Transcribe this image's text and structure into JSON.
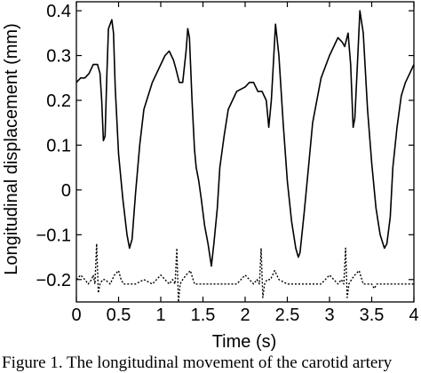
{
  "caption": "Figure 1. The longitudinal movement of the carotid artery",
  "chart_data": {
    "type": "line",
    "xlabel": "Time (s)",
    "ylabel": "Longitudinal displacement (mm)",
    "xlim": [
      0,
      4
    ],
    "ylim": [
      -0.25,
      0.42
    ],
    "grid": false,
    "x_ticks": [
      0,
      0.5,
      1,
      1.5,
      2,
      2.5,
      3,
      3.5,
      4
    ],
    "x_tick_labels": [
      "0",
      "0.5",
      "1",
      "1.5",
      "2",
      "2.5",
      "3",
      "3.5",
      "4"
    ],
    "y_ticks": [
      -0.2,
      -0.1,
      0,
      0.1,
      0.2,
      0.3,
      0.4
    ],
    "y_tick_labels": [
      "−0.2",
      "−0.1",
      "0",
      "0.1",
      "0.2",
      "0.3",
      "0.4"
    ],
    "series": [
      {
        "style": "solid",
        "x": [
          0,
          0.05,
          0.1,
          0.15,
          0.2,
          0.25,
          0.28,
          0.3,
          0.32,
          0.34,
          0.36,
          0.38,
          0.42,
          0.44,
          0.46,
          0.5,
          0.55,
          0.6,
          0.63,
          0.66,
          0.7,
          0.75,
          0.8,
          0.9,
          1.0,
          1.05,
          1.1,
          1.15,
          1.18,
          1.22,
          1.26,
          1.3,
          1.32,
          1.34,
          1.37,
          1.4,
          1.42,
          1.45,
          1.48,
          1.52,
          1.56,
          1.6,
          1.63,
          1.67,
          1.7,
          1.75,
          1.8,
          1.9,
          2.0,
          2.05,
          2.1,
          2.15,
          2.2,
          2.25,
          2.28,
          2.31,
          2.34,
          2.36,
          2.4,
          2.45,
          2.5,
          2.55,
          2.6,
          2.63,
          2.65,
          2.7,
          2.75,
          2.8,
          2.9,
          3.0,
          3.1,
          3.15,
          3.18,
          3.22,
          3.25,
          3.28,
          3.3,
          3.33,
          3.36,
          3.4,
          3.45,
          3.5,
          3.55,
          3.6,
          3.65,
          3.68,
          3.72,
          3.75,
          3.8,
          3.85,
          3.9,
          3.95,
          4.0
        ],
        "y": [
          0.24,
          0.25,
          0.25,
          0.26,
          0.28,
          0.28,
          0.26,
          0.2,
          0.11,
          0.12,
          0.25,
          0.36,
          0.38,
          0.35,
          0.23,
          0.08,
          -0.02,
          -0.1,
          -0.13,
          -0.11,
          -0.01,
          0.1,
          0.18,
          0.24,
          0.28,
          0.3,
          0.31,
          0.29,
          0.27,
          0.24,
          0.24,
          0.31,
          0.36,
          0.34,
          0.2,
          0.09,
          0.05,
          0.02,
          -0.02,
          -0.08,
          -0.12,
          -0.17,
          -0.12,
          -0.04,
          0.05,
          0.12,
          0.18,
          0.22,
          0.23,
          0.24,
          0.24,
          0.22,
          0.22,
          0.2,
          0.14,
          0.2,
          0.3,
          0.37,
          0.3,
          0.15,
          0.02,
          -0.07,
          -0.13,
          -0.15,
          -0.14,
          -0.05,
          0.05,
          0.15,
          0.25,
          0.3,
          0.34,
          0.33,
          0.32,
          0.35,
          0.28,
          0.14,
          0.16,
          0.28,
          0.4,
          0.35,
          0.18,
          0.06,
          -0.04,
          -0.1,
          -0.13,
          -0.12,
          -0.06,
          0.05,
          0.14,
          0.21,
          0.24,
          0.26,
          0.28
        ]
      },
      {
        "style": "dotted",
        "x": [
          0,
          0.05,
          0.1,
          0.14,
          0.18,
          0.2,
          0.22,
          0.24,
          0.26,
          0.28,
          0.31,
          0.34,
          0.4,
          0.45,
          0.5,
          0.53,
          0.56,
          0.6,
          0.65,
          0.7,
          0.8,
          0.9,
          0.95,
          1.0,
          1.05,
          1.1,
          1.14,
          1.17,
          1.19,
          1.21,
          1.23,
          1.26,
          1.3,
          1.35,
          1.4,
          1.5,
          1.53,
          1.56,
          1.6,
          1.7,
          1.8,
          1.9,
          1.95,
          2.0,
          2.05,
          2.1,
          2.14,
          2.17,
          2.19,
          2.21,
          2.23,
          2.26,
          2.3,
          2.35,
          2.4,
          2.5,
          2.53,
          2.56,
          2.6,
          2.7,
          2.8,
          2.9,
          2.95,
          3.0,
          3.05,
          3.1,
          3.14,
          3.17,
          3.19,
          3.21,
          3.23,
          3.26,
          3.3,
          3.35,
          3.4,
          3.5,
          3.53,
          3.56,
          3.6,
          3.7,
          3.8,
          3.9,
          4.0
        ],
        "y": [
          -0.2,
          -0.19,
          -0.2,
          -0.21,
          -0.2,
          -0.19,
          -0.21,
          -0.12,
          -0.23,
          -0.21,
          -0.2,
          -0.2,
          -0.21,
          -0.19,
          -0.18,
          -0.2,
          -0.21,
          -0.21,
          -0.21,
          -0.21,
          -0.2,
          -0.21,
          -0.2,
          -0.19,
          -0.2,
          -0.21,
          -0.2,
          -0.21,
          -0.13,
          -0.25,
          -0.21,
          -0.2,
          -0.19,
          -0.18,
          -0.21,
          -0.21,
          -0.21,
          -0.21,
          -0.21,
          -0.21,
          -0.21,
          -0.21,
          -0.2,
          -0.19,
          -0.2,
          -0.21,
          -0.2,
          -0.21,
          -0.13,
          -0.24,
          -0.21,
          -0.2,
          -0.2,
          -0.18,
          -0.2,
          -0.21,
          -0.21,
          -0.21,
          -0.21,
          -0.21,
          -0.21,
          -0.21,
          -0.2,
          -0.19,
          -0.2,
          -0.21,
          -0.2,
          -0.21,
          -0.13,
          -0.24,
          -0.21,
          -0.2,
          -0.19,
          -0.18,
          -0.21,
          -0.21,
          -0.22,
          -0.21,
          -0.21,
          -0.21,
          -0.21,
          -0.21,
          -0.21
        ]
      }
    ]
  }
}
